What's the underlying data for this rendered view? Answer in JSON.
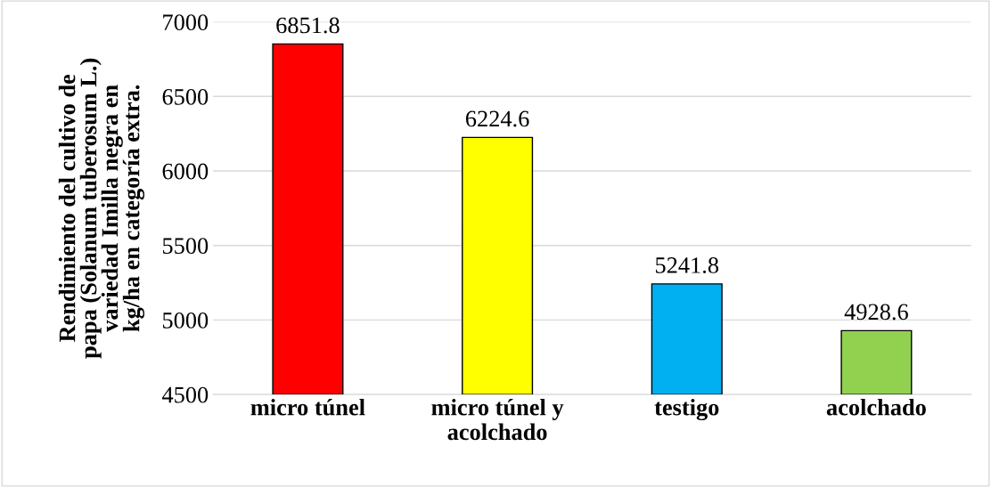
{
  "chart_data": {
    "type": "bar",
    "ylabel": "Rendimiento del cultivo de\npapa (Solanum tuberosum L.)\nvariedad Imilla negra en\nkg/ha en categoría extra.",
    "categories": [
      "micro túnel",
      "micro túnel y\nacolchado",
      "testigo",
      "acolchado"
    ],
    "values": [
      6851.8,
      6224.6,
      5241.8,
      4928.6
    ],
    "colors": [
      "#ff0000",
      "#ffff00",
      "#00b0f0",
      "#92d050"
    ],
    "ylim": [
      4500,
      7000
    ],
    "yticks": [
      4500,
      5000,
      5500,
      6000,
      6500,
      7000
    ],
    "grid": "y",
    "data_labels": true
  }
}
